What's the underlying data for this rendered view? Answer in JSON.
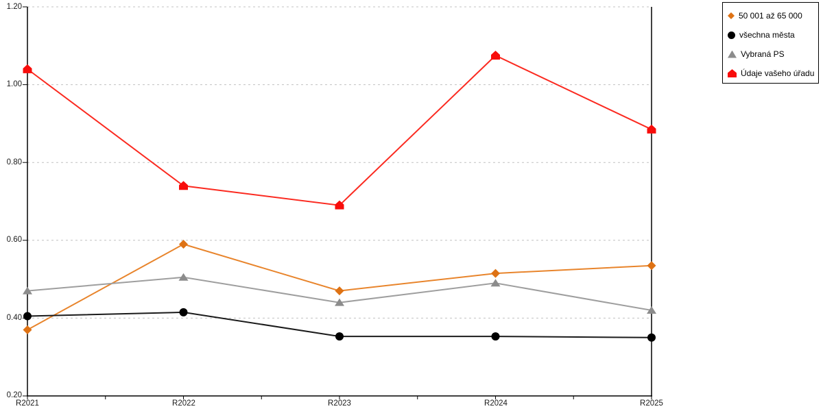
{
  "chart_data": {
    "type": "line",
    "title": "",
    "xlabel": "",
    "ylabel": "",
    "x_categories": [
      "R2021",
      "R2022",
      "R2023",
      "R2024",
      "R2025"
    ],
    "y_tick_labels": [
      "1.20",
      "1.00",
      "0.80",
      "0.60",
      "0.40",
      "0.20"
    ],
    "ylim": [
      0.2,
      1.2
    ],
    "grid": "horizontal-dashed",
    "grid_color": "#c0c0c0",
    "axis_color": "#000000",
    "legend_position": "top-right",
    "series": [
      {
        "id": "50001-az-65000",
        "name": "50 001 až 65 000",
        "marker": "diamond",
        "color": "#de7214",
        "line_color": "#e8842b",
        "values": [
          0.37,
          0.59,
          0.47,
          0.515,
          0.535
        ]
      },
      {
        "id": "vsechna-mesta",
        "name": "všechna města",
        "marker": "circle",
        "color": "#000000",
        "line_color": "#1a1a1a",
        "values": [
          0.405,
          0.415,
          0.353,
          0.353,
          0.35
        ]
      },
      {
        "id": "vybrana-ps",
        "name": "Vybraná PS",
        "marker": "triangle",
        "color": "#8c8c8c",
        "line_color": "#9e9e9e",
        "values": [
          0.47,
          0.505,
          0.44,
          0.49,
          0.42
        ]
      },
      {
        "id": "udaje-vaseho-uradu",
        "name": "Údaje vašeho úřadu",
        "marker": "house",
        "color": "#f80d0b",
        "line_color": "#fb2a20",
        "values": [
          1.04,
          0.74,
          0.69,
          1.075,
          0.885
        ]
      }
    ]
  }
}
